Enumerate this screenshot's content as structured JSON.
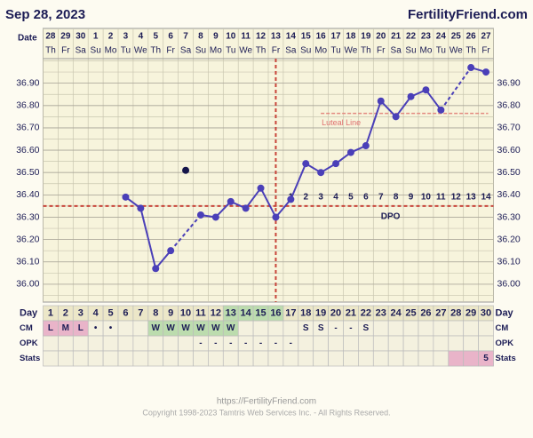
{
  "chart_data": {
    "type": "line",
    "date": "Sep 28, 2023",
    "site": "FertilityFriend.com",
    "date_label": "Date",
    "dates": [
      28,
      29,
      30,
      1,
      2,
      3,
      4,
      5,
      6,
      7,
      8,
      9,
      10,
      11,
      12,
      13,
      14,
      15,
      16,
      17,
      18,
      19,
      20,
      21,
      22,
      23,
      24,
      25,
      26,
      27
    ],
    "weekdays": [
      "Th",
      "Fr",
      "Sa",
      "Su",
      "Mo",
      "Tu",
      "We",
      "Th",
      "Fr",
      "Sa",
      "Su",
      "Mo",
      "Tu",
      "We",
      "Th",
      "Fr",
      "Sa",
      "Su",
      "Mo",
      "Tu",
      "We",
      "Th",
      "Fr",
      "Sa",
      "Su",
      "Mo",
      "Tu",
      "We",
      "Th",
      "Fr"
    ],
    "ylim": [
      35.92,
      37.01
    ],
    "yticks": [
      {
        "value": 36.0,
        "label": "36.00"
      },
      {
        "value": 36.1,
        "label": "36.10"
      },
      {
        "value": 36.2,
        "label": "36.20"
      },
      {
        "value": 36.3,
        "label": "36.30"
      },
      {
        "value": 36.4,
        "label": "36.40"
      },
      {
        "value": 36.5,
        "label": "36.50"
      },
      {
        "value": 36.6,
        "label": "36.60"
      },
      {
        "value": 36.7,
        "label": "36.70"
      },
      {
        "value": 36.8,
        "label": "36.80"
      },
      {
        "value": 36.9,
        "label": "36.90"
      }
    ],
    "color": "#4a3fb8",
    "temperatures": [
      null,
      null,
      null,
      null,
      null,
      36.39,
      36.34,
      36.07,
      36.15,
      null,
      36.31,
      36.3,
      36.37,
      36.34,
      36.43,
      36.3,
      36.38,
      36.54,
      36.5,
      36.54,
      36.59,
      36.62,
      36.82,
      36.75,
      36.84,
      36.87,
      36.78,
      null,
      36.97,
      36.95
    ],
    "discarded": [
      null,
      null,
      null,
      null,
      null,
      null,
      null,
      null,
      null,
      36.51,
      null,
      null,
      null,
      null,
      null,
      null,
      null,
      null,
      null,
      null,
      null,
      null,
      null,
      null,
      null,
      null,
      null,
      null,
      null,
      null
    ],
    "coverline": 36.35,
    "ovulation_day": 16,
    "luteal_line": {
      "label": "Luteal Line",
      "value": 36.765,
      "from_day": 19
    },
    "dpo": {
      "label": "DPO",
      "values": [
        1,
        2,
        3,
        4,
        5,
        6,
        7,
        8,
        9,
        10,
        11,
        12,
        13,
        14
      ]
    },
    "rows": {
      "day": "Day",
      "cm": "CM",
      "opk": "OPK",
      "stats": "Stats"
    },
    "days": [
      1,
      2,
      3,
      4,
      5,
      6,
      7,
      8,
      9,
      10,
      11,
      12,
      13,
      14,
      15,
      16,
      17,
      18,
      19,
      20,
      21,
      22,
      23,
      24,
      25,
      26,
      27,
      28,
      29,
      30
    ],
    "fertile_days": [
      13,
      14,
      15,
      16
    ],
    "cm": [
      "L",
      "M",
      "L",
      "•",
      "•",
      null,
      null,
      "W",
      "W",
      "W",
      "W",
      "W",
      "W",
      null,
      null,
      null,
      null,
      "S",
      "S",
      "-",
      "-",
      "S",
      null,
      null,
      null,
      null,
      null,
      null,
      null,
      null
    ],
    "period_days": [
      1,
      2,
      3
    ],
    "cm_fertile_days": [
      8,
      9,
      10,
      11,
      12,
      13
    ],
    "opk": [
      null,
      null,
      null,
      null,
      null,
      null,
      null,
      null,
      null,
      null,
      "-",
      "-",
      "-",
      "-",
      "-",
      "-",
      "-",
      null,
      null,
      null,
      null,
      null,
      null,
      null,
      null,
      null,
      null,
      null,
      null,
      null
    ],
    "stats": [
      null,
      null,
      null,
      null,
      null,
      null,
      null,
      null,
      null,
      null,
      null,
      null,
      null,
      null,
      null,
      null,
      null,
      null,
      null,
      null,
      null,
      null,
      null,
      null,
      null,
      null,
      null,
      null,
      null,
      5
    ],
    "predicted_days": [
      28,
      29,
      30
    ],
    "footer_url": "https://FertilityFriend.com",
    "copyright": "Copyright 1998-2023 Tamtris Web Services Inc. - All Rights Reserved."
  }
}
